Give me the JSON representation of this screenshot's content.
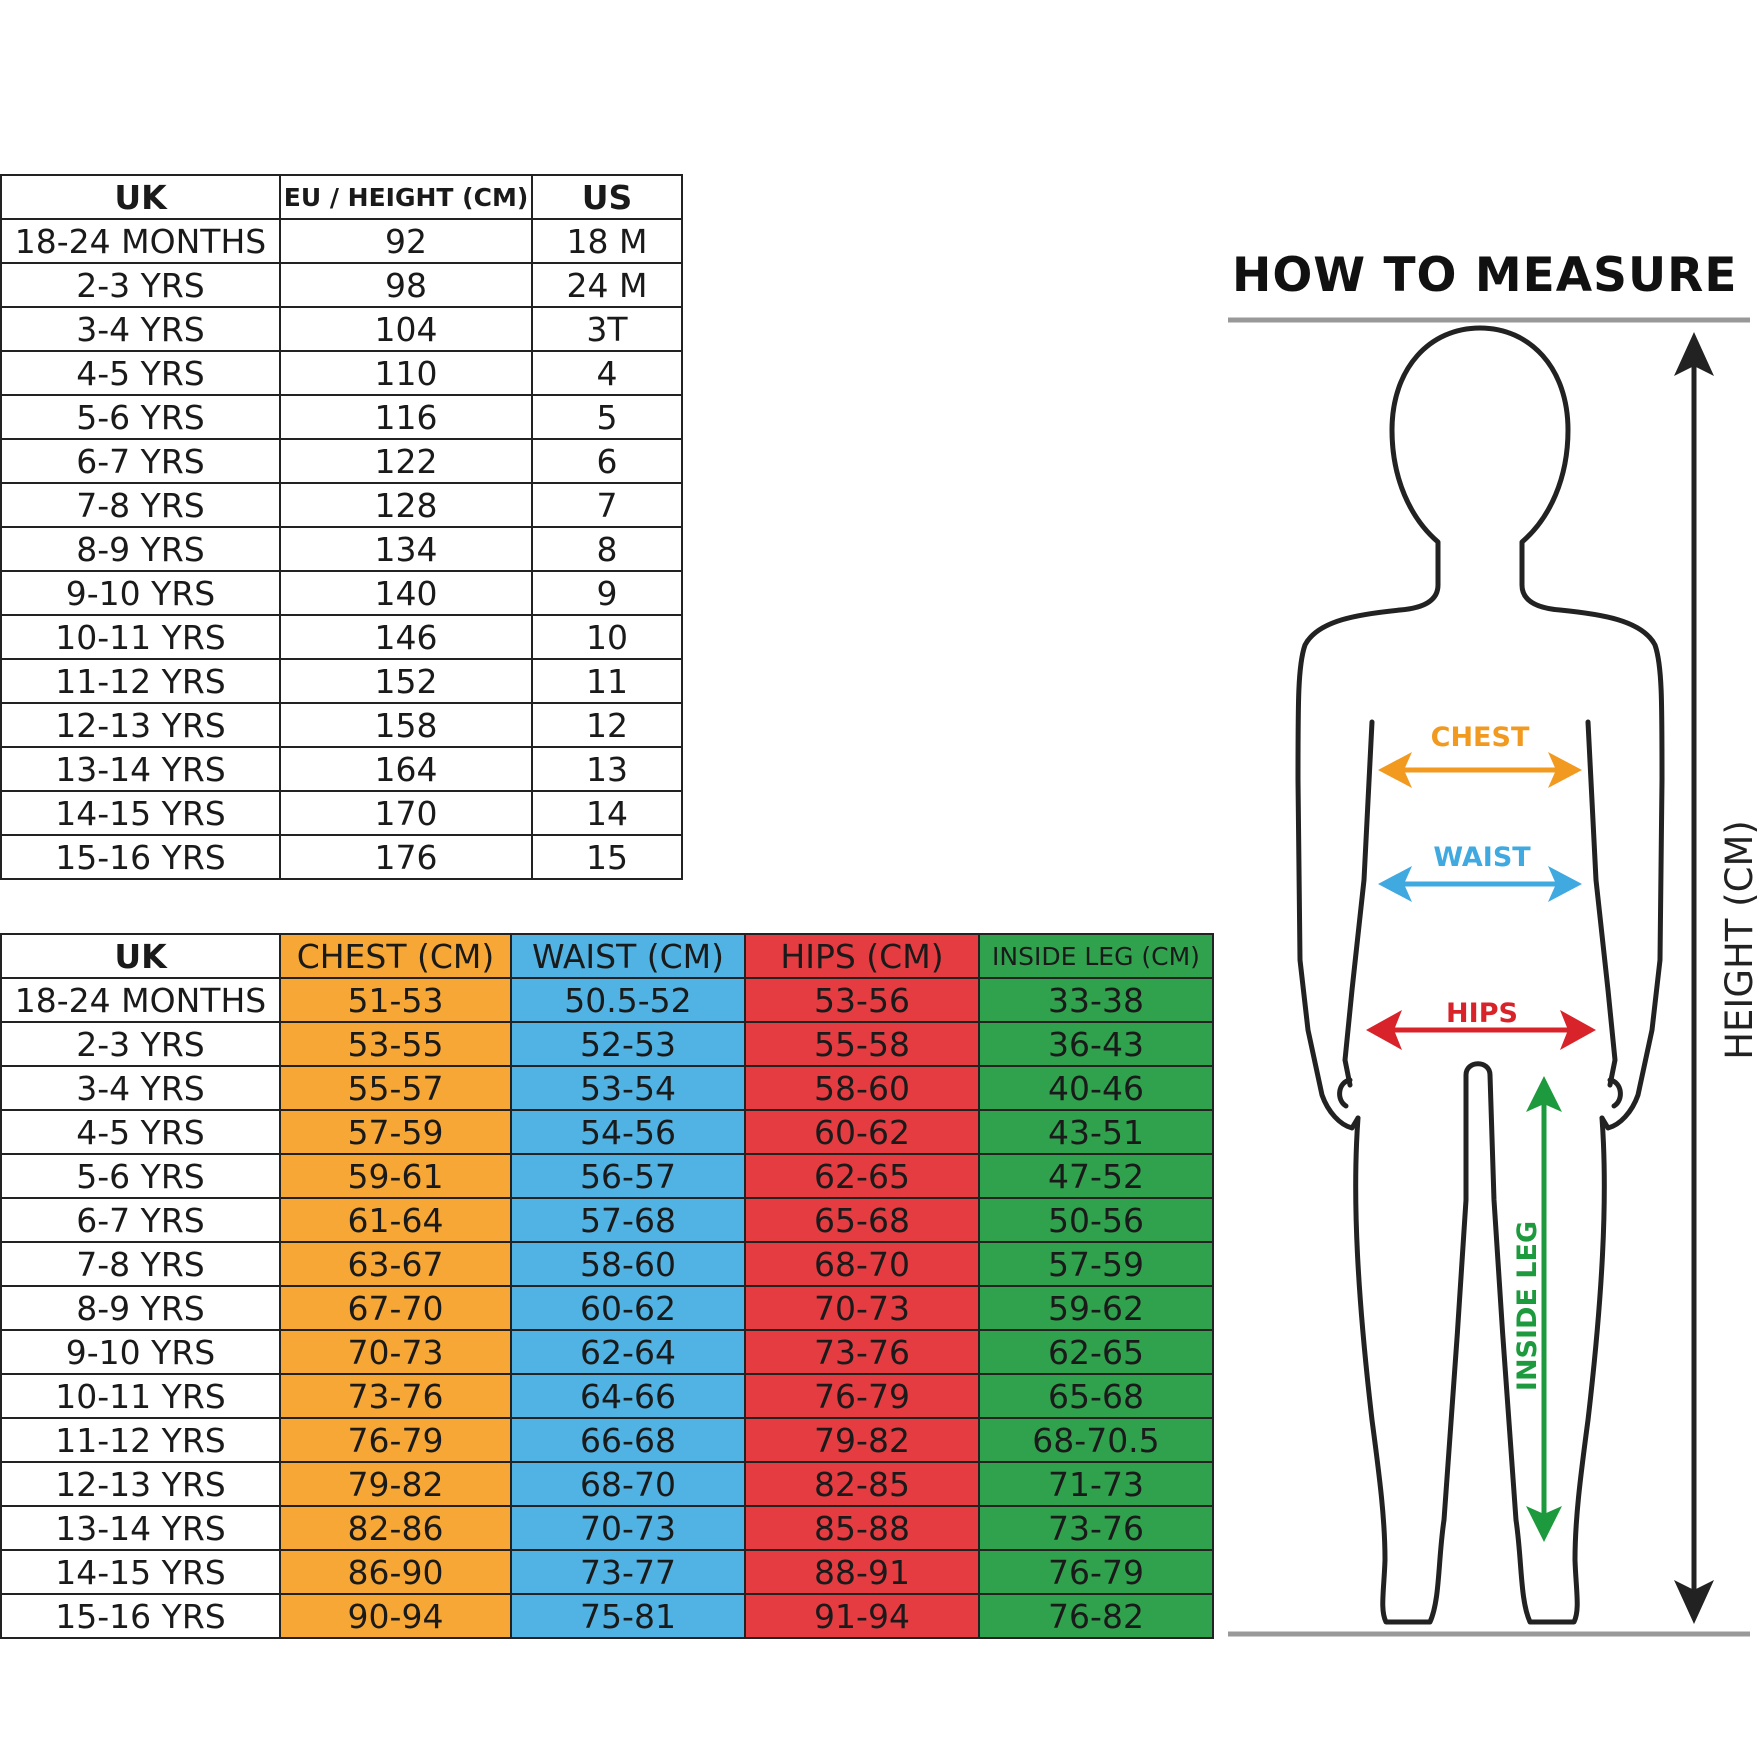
{
  "size_table": {
    "headers": [
      "UK",
      "EU / HEIGHT (CM)",
      "US"
    ],
    "rows": [
      [
        "18-24 MONTHS",
        "92",
        "18 M"
      ],
      [
        "2-3 YRS",
        "98",
        "24 M"
      ],
      [
        "3-4 YRS",
        "104",
        "3T"
      ],
      [
        "4-5 YRS",
        "110",
        "4"
      ],
      [
        "5-6 YRS",
        "116",
        "5"
      ],
      [
        "6-7 YRS",
        "122",
        "6"
      ],
      [
        "7-8 YRS",
        "128",
        "7"
      ],
      [
        "8-9 YRS",
        "134",
        "8"
      ],
      [
        "9-10 YRS",
        "140",
        "9"
      ],
      [
        "10-11 YRS",
        "146",
        "10"
      ],
      [
        "11-12 YRS",
        "152",
        "11"
      ],
      [
        "12-13 YRS",
        "158",
        "12"
      ],
      [
        "13-14 YRS",
        "164",
        "13"
      ],
      [
        "14-15 YRS",
        "170",
        "14"
      ],
      [
        "15-16 YRS",
        "176",
        "15"
      ]
    ]
  },
  "measure_table": {
    "headers": [
      "UK",
      "CHEST (CM)",
      "WAIST (CM)",
      "HIPS (CM)",
      "INSIDE LEG (CM)"
    ],
    "rows": [
      [
        "18-24 MONTHS",
        "51-53",
        "50.5-52",
        "53-56",
        "33-38"
      ],
      [
        "2-3 YRS",
        "53-55",
        "52-53",
        "55-58",
        "36-43"
      ],
      [
        "3-4 YRS",
        "55-57",
        "53-54",
        "58-60",
        "40-46"
      ],
      [
        "4-5 YRS",
        "57-59",
        "54-56",
        "60-62",
        "43-51"
      ],
      [
        "5-6 YRS",
        "59-61",
        "56-57",
        "62-65",
        "47-52"
      ],
      [
        "6-7 YRS",
        "61-64",
        "57-68",
        "65-68",
        "50-56"
      ],
      [
        "7-8 YRS",
        "63-67",
        "58-60",
        "68-70",
        "57-59"
      ],
      [
        "8-9 YRS",
        "67-70",
        "60-62",
        "70-73",
        "59-62"
      ],
      [
        "9-10 YRS",
        "70-73",
        "62-64",
        "73-76",
        "62-65"
      ],
      [
        "10-11 YRS",
        "73-76",
        "64-66",
        "76-79",
        "65-68"
      ],
      [
        "11-12 YRS",
        "76-79",
        "66-68",
        "79-82",
        "68-70.5"
      ],
      [
        "12-13 YRS",
        "79-82",
        "68-70",
        "82-85",
        "71-73"
      ],
      [
        "13-14 YRS",
        "82-86",
        "70-73",
        "85-88",
        "73-76"
      ],
      [
        "14-15 YRS",
        "86-90",
        "73-77",
        "88-91",
        "76-79"
      ],
      [
        "15-16 YRS",
        "90-94",
        "75-81",
        "91-94",
        "76-82"
      ]
    ],
    "column_colors": {
      "chest": "#f6a735",
      "waist": "#50b3e3",
      "hips": "#e53c42",
      "inside_leg": "#30a24e"
    }
  },
  "how_to_measure": {
    "title": "HOW TO MEASURE",
    "chest_label": "CHEST",
    "waist_label": "WAIST",
    "hips_label": "HIPS",
    "inside_leg_label": "INSIDE LEG",
    "height_label": "HEIGHT (CM)",
    "colors": {
      "chest": "#f29a1f",
      "waist": "#3fa9e0",
      "hips": "#d9232a",
      "inside_leg": "#1e9a3e"
    }
  }
}
